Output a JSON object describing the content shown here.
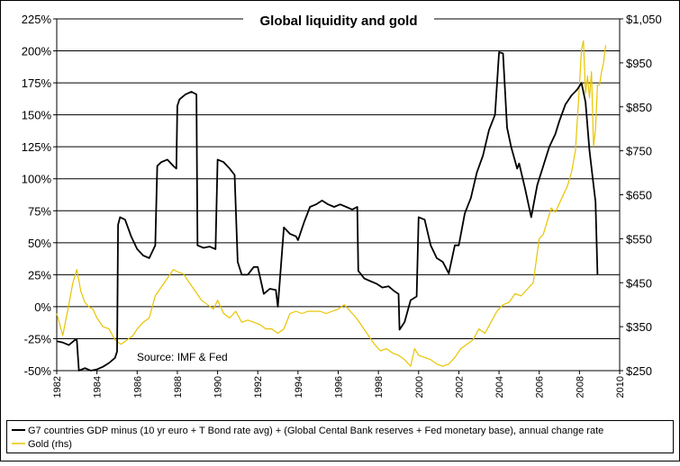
{
  "chart_data": {
    "type": "line",
    "title": "Global liquidity and gold",
    "annotation": "Source: IMF & Fed",
    "x_range": [
      1982,
      2010
    ],
    "x_ticks": [
      "1982",
      "1984",
      "1986",
      "1988",
      "1990",
      "1992",
      "1994",
      "1996",
      "1998",
      "2000",
      "2002",
      "2004",
      "2006",
      "2008",
      "2010"
    ],
    "y_left": {
      "range": [
        -50,
        225
      ],
      "ticks": [
        "-50%",
        "-25%",
        "0%",
        "25%",
        "50%",
        "75%",
        "100%",
        "125%",
        "150%",
        "175%",
        "200%",
        "225%"
      ]
    },
    "y_right": {
      "range": [
        250,
        1050
      ],
      "ticks": [
        "$250",
        "$350",
        "$450",
        "$550",
        "$650",
        "$750",
        "$850",
        "$950",
        "$1,050"
      ]
    },
    "grid": true,
    "series": [
      {
        "name": "G7 countries GDP minus (10 yr euro + T Bond rate avg) + (Global Cental Bank reserves + Fed monetary base), annual change rate",
        "axis": "left",
        "color": "#000000",
        "x": [
          1982.0,
          1982.3,
          1982.6,
          1982.9,
          1983.0,
          1983.1,
          1983.4,
          1983.7,
          1984.0,
          1984.3,
          1984.6,
          1984.9,
          1985.0,
          1985.05,
          1985.15,
          1985.4,
          1985.7,
          1986.0,
          1986.3,
          1986.6,
          1986.9,
          1987.0,
          1987.2,
          1987.5,
          1987.8,
          1987.95,
          1988.0,
          1988.1,
          1988.4,
          1988.7,
          1988.95,
          1989.0,
          1989.3,
          1989.6,
          1989.9,
          1990.0,
          1990.3,
          1990.6,
          1990.85,
          1991.0,
          1991.2,
          1991.5,
          1991.8,
          1992.0,
          1992.3,
          1992.6,
          1992.9,
          1993.0,
          1993.3,
          1993.6,
          1993.9,
          1994.0,
          1994.3,
          1994.6,
          1994.9,
          1995.2,
          1995.5,
          1995.8,
          1996.1,
          1996.4,
          1996.7,
          1996.95,
          1997.0,
          1997.3,
          1997.6,
          1997.9,
          1998.2,
          1998.5,
          1998.8,
          1999.0,
          1999.05,
          1999.3,
          1999.6,
          1999.9,
          2000.0,
          2000.3,
          2000.6,
          2000.9,
          2001.2,
          2001.5,
          2001.8,
          2002.0,
          2002.3,
          2002.6,
          2002.9,
          2003.2,
          2003.5,
          2003.8,
          2004.0,
          2004.2,
          2004.4,
          2004.6,
          2004.9,
          2005.0,
          2005.3,
          2005.6,
          2005.9,
          2006.2,
          2006.5,
          2006.8,
          2007.0,
          2007.3,
          2007.6,
          2007.9,
          2008.1,
          2008.3,
          2008.5,
          2008.7,
          2008.8,
          2008.9
        ],
        "values": [
          -27,
          -28,
          -30,
          -26,
          -26,
          -50,
          -48,
          -50,
          -49,
          -47,
          -44,
          -40,
          -35,
          64,
          70,
          68,
          55,
          45,
          40,
          38,
          48,
          110,
          113,
          115,
          110,
          108,
          157,
          162,
          166,
          168,
          166,
          48,
          46,
          47,
          45,
          115,
          113,
          108,
          103,
          35,
          25,
          25,
          31,
          31,
          10,
          14,
          13,
          0,
          62,
          57,
          55,
          52,
          66,
          78,
          80,
          83,
          80,
          78,
          80,
          78,
          76,
          78,
          28,
          22,
          20,
          18,
          15,
          16,
          12,
          10,
          -18,
          -12,
          5,
          8,
          70,
          68,
          48,
          38,
          35,
          26,
          48,
          48,
          73,
          85,
          105,
          118,
          138,
          150,
          199,
          198,
          140,
          125,
          108,
          112,
          92,
          70,
          95,
          110,
          125,
          135,
          145,
          158,
          165,
          170,
          175,
          160,
          122,
          95,
          82,
          25
        ]
      },
      {
        "name": "Gold (rhs)",
        "axis": "right",
        "color": "#e8c400",
        "x": [
          1982.0,
          1982.3,
          1982.6,
          1982.8,
          1983.0,
          1983.2,
          1983.4,
          1983.6,
          1983.8,
          1984.0,
          1984.3,
          1984.6,
          1984.9,
          1985.2,
          1985.5,
          1985.8,
          1986.0,
          1986.3,
          1986.6,
          1986.9,
          1987.2,
          1987.5,
          1987.8,
          1988.0,
          1988.3,
          1988.6,
          1988.9,
          1989.2,
          1989.5,
          1989.8,
          1990.0,
          1990.3,
          1990.6,
          1990.9,
          1991.2,
          1991.5,
          1991.8,
          1992.1,
          1992.4,
          1992.7,
          1993.0,
          1993.3,
          1993.6,
          1993.9,
          1994.2,
          1994.5,
          1994.8,
          1995.1,
          1995.4,
          1995.7,
          1996.0,
          1996.3,
          1996.6,
          1996.9,
          1997.2,
          1997.5,
          1997.8,
          1998.1,
          1998.4,
          1998.7,
          1999.0,
          1999.3,
          1999.6,
          1999.8,
          2000.0,
          2000.3,
          2000.6,
          2000.9,
          2001.2,
          2001.5,
          2001.8,
          2002.1,
          2002.4,
          2002.7,
          2003.0,
          2003.3,
          2003.6,
          2003.9,
          2004.2,
          2004.5,
          2004.8,
          2005.1,
          2005.4,
          2005.7,
          2006.0,
          2006.2,
          2006.4,
          2006.6,
          2006.8,
          2007.0,
          2007.2,
          2007.4,
          2007.6,
          2007.8,
          2008.0,
          2008.1,
          2008.2,
          2008.3,
          2008.4,
          2008.5,
          2008.6,
          2008.7,
          2008.8,
          2008.9,
          2009.0,
          2009.1,
          2009.2,
          2009.3
        ],
        "values": [
          380,
          330,
          400,
          450,
          480,
          430,
          405,
          395,
          390,
          370,
          350,
          345,
          320,
          310,
          320,
          330,
          345,
          360,
          370,
          420,
          440,
          460,
          480,
          475,
          470,
          450,
          430,
          410,
          400,
          390,
          410,
          380,
          370,
          385,
          360,
          365,
          360,
          355,
          345,
          345,
          335,
          345,
          380,
          385,
          380,
          385,
          385,
          385,
          380,
          385,
          390,
          400,
          385,
          370,
          350,
          330,
          310,
          295,
          300,
          290,
          285,
          275,
          260,
          300,
          285,
          280,
          275,
          265,
          260,
          265,
          280,
          300,
          310,
          320,
          345,
          335,
          360,
          385,
          400,
          405,
          425,
          420,
          435,
          450,
          550,
          560,
          590,
          620,
          610,
          630,
          650,
          670,
          700,
          750,
          900,
          980,
          1000,
          880,
          920,
          870,
          930,
          760,
          800,
          900,
          900,
          930,
          950,
          990
        ]
      }
    ]
  },
  "legend": {
    "entries": [
      "G7 countries GDP minus (10 yr euro + T Bond rate avg) + (Global Cental Bank reserves + Fed monetary base), annual change rate",
      "Gold (rhs)"
    ]
  }
}
